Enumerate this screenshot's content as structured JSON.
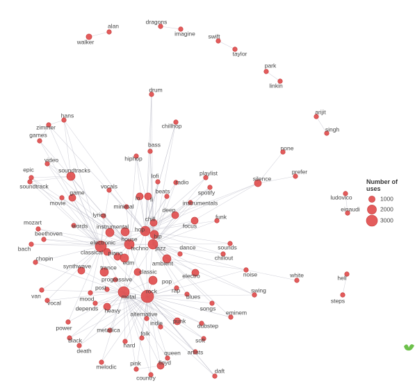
{
  "chart_data": {
    "type": "network",
    "color": "#e04a4a",
    "legend_title": "Number of uses",
    "legend_sizes": [
      1000,
      2000,
      3000
    ],
    "nodes": [
      {
        "label": "alan",
        "uses": 500
      },
      {
        "label": "walker",
        "uses": 800
      },
      {
        "label": "dragons",
        "uses": 500
      },
      {
        "label": "imagine",
        "uses": 500
      },
      {
        "label": "swift",
        "uses": 500
      },
      {
        "label": "taylor",
        "uses": 500
      },
      {
        "label": "park",
        "uses": 500
      },
      {
        "label": "linkin",
        "uses": 500
      },
      {
        "label": "drum",
        "uses": 500
      },
      {
        "label": "arijit",
        "uses": 500
      },
      {
        "label": "singh",
        "uses": 500
      },
      {
        "label": "hans",
        "uses": 500
      },
      {
        "label": "zimmer",
        "uses": 500
      },
      {
        "label": "games",
        "uses": 500
      },
      {
        "label": "chillhop",
        "uses": 500
      },
      {
        "label": "bass",
        "uses": 500
      },
      {
        "label": "hiphop",
        "uses": 500
      },
      {
        "label": "none",
        "uses": 500
      },
      {
        "label": "prefer",
        "uses": 500
      },
      {
        "label": "silence",
        "uses": 1200
      },
      {
        "label": "video",
        "uses": 500
      },
      {
        "label": "epic",
        "uses": 500
      },
      {
        "label": "soundtrack",
        "uses": 500
      },
      {
        "label": "soundtracks",
        "uses": 1700
      },
      {
        "label": "lofi",
        "uses": 500
      },
      {
        "label": "radio",
        "uses": 500
      },
      {
        "label": "playlist",
        "uses": 500
      },
      {
        "label": "spotify",
        "uses": 500
      },
      {
        "label": "vocals",
        "uses": 500
      },
      {
        "label": "game",
        "uses": 1200
      },
      {
        "label": "movie",
        "uses": 500
      },
      {
        "label": "ludovico",
        "uses": 500
      },
      {
        "label": "einaudi",
        "uses": 500
      },
      {
        "label": "beats",
        "uses": 500
      },
      {
        "label": "lo",
        "uses": 1200
      },
      {
        "label": "fi",
        "uses": 1200
      },
      {
        "label": "minimal",
        "uses": 500
      },
      {
        "label": "instrumentals",
        "uses": 500
      },
      {
        "label": "deep",
        "uses": 1200
      },
      {
        "label": "chill",
        "uses": 1200
      },
      {
        "label": "focus",
        "uses": 1200
      },
      {
        "label": "funk",
        "uses": 500
      },
      {
        "label": "lyrics",
        "uses": 500
      },
      {
        "label": "mozart",
        "uses": 500
      },
      {
        "label": "words",
        "uses": 500
      },
      {
        "label": "instrumental",
        "uses": 1700
      },
      {
        "label": "hop",
        "uses": 2300
      },
      {
        "label": "hip",
        "uses": 1700
      },
      {
        "label": "beethoven",
        "uses": 500
      },
      {
        "label": "bach",
        "uses": 500
      },
      {
        "label": "house",
        "uses": 1700
      },
      {
        "label": "electronic",
        "uses": 3000
      },
      {
        "label": "techno",
        "uses": 2300
      },
      {
        "label": "jazz",
        "uses": 2300
      },
      {
        "label": "dance",
        "uses": 500
      },
      {
        "label": "sounds",
        "uses": 500
      },
      {
        "label": "chillout",
        "uses": 500
      },
      {
        "label": "classical",
        "uses": 1200
      },
      {
        "label": "piano",
        "uses": 1200
      },
      {
        "label": "edm",
        "uses": 1700
      },
      {
        "label": "chopin",
        "uses": 500
      },
      {
        "label": "synthwave",
        "uses": 1200
      },
      {
        "label": "trance",
        "uses": 1700
      },
      {
        "label": "ambient",
        "uses": 1700
      },
      {
        "label": "classic",
        "uses": 1200
      },
      {
        "label": "progressive",
        "uses": 500
      },
      {
        "label": "noise",
        "uses": 500
      },
      {
        "label": "white",
        "uses": 500
      },
      {
        "label": "pop",
        "uses": 1700
      },
      {
        "label": "electro",
        "uses": 1200
      },
      {
        "label": "hell",
        "uses": 500
      },
      {
        "label": "post",
        "uses": 500
      },
      {
        "label": "van",
        "uses": 500
      },
      {
        "label": "swing",
        "uses": 500
      },
      {
        "label": "metal",
        "uses": 3000
      },
      {
        "label": "rock",
        "uses": 3800
      },
      {
        "label": "rap",
        "uses": 500
      },
      {
        "label": "blues",
        "uses": 500
      },
      {
        "label": "mood",
        "uses": 500
      },
      {
        "label": "vocal",
        "uses": 500
      },
      {
        "label": "depends",
        "uses": 500
      },
      {
        "label": "heavy",
        "uses": 1200
      },
      {
        "label": "steps",
        "uses": 500
      },
      {
        "label": "songs",
        "uses": 500
      },
      {
        "label": "eminem",
        "uses": 500
      },
      {
        "label": "alternative",
        "uses": 500
      },
      {
        "label": "punk",
        "uses": 1200
      },
      {
        "label": "indie",
        "uses": 500
      },
      {
        "label": "dubstep",
        "uses": 500
      },
      {
        "label": "power",
        "uses": 500
      },
      {
        "label": "metallica",
        "uses": 500
      },
      {
        "label": "folk",
        "uses": 500
      },
      {
        "label": "black",
        "uses": 500
      },
      {
        "label": "hard",
        "uses": 500
      },
      {
        "label": "soft",
        "uses": 500
      },
      {
        "label": "death",
        "uses": 500
      },
      {
        "label": "artists",
        "uses": 500
      },
      {
        "label": "queen",
        "uses": 500
      },
      {
        "label": "melodic",
        "uses": 500
      },
      {
        "label": "pink",
        "uses": 500
      },
      {
        "label": "floyd",
        "uses": 1200
      },
      {
        "label": "daft",
        "uses": 500
      },
      {
        "label": "country",
        "uses": 500
      }
    ]
  }
}
